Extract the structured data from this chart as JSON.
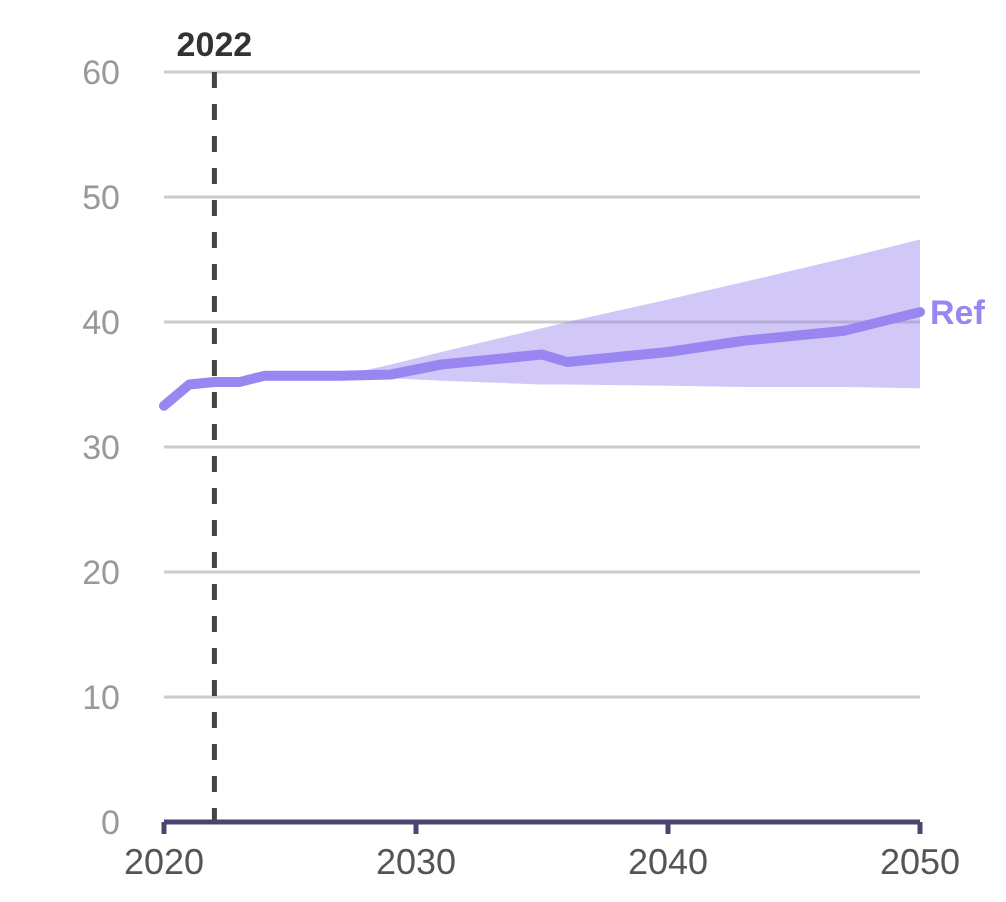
{
  "chart_data": {
    "type": "line",
    "x": [
      2020,
      2021,
      2022,
      2023,
      2024,
      2027,
      2029,
      2031,
      2035,
      2036,
      2040,
      2043,
      2047,
      2050
    ],
    "series": [
      {
        "name": "Ref",
        "color": "#9a86f0",
        "values": [
          33.3,
          35,
          35.2,
          35.2,
          35.7,
          35.7,
          35.8,
          36.6,
          37.4,
          36.8,
          37.6,
          38.5,
          39.3,
          40.8
        ],
        "lower": [
          null,
          null,
          null,
          null,
          null,
          35.7,
          35.5,
          35.3,
          35,
          35,
          34.9,
          34.8,
          34.8,
          34.7
        ],
        "upper": [
          null,
          null,
          null,
          null,
          null,
          35.7,
          36.6,
          37.6,
          39.5,
          40,
          41.8,
          43.2,
          45.1,
          46.6
        ]
      }
    ],
    "xlim": [
      2020,
      2050
    ],
    "xticks": [
      2020,
      2030,
      2040,
      2050
    ],
    "ylim": [
      0,
      60
    ],
    "yticks": [
      0,
      10,
      20,
      30,
      40,
      50,
      60
    ],
    "grid": "y",
    "legend": false,
    "ref_lines": [
      {
        "axis": "x",
        "value": 2022,
        "label": "2022",
        "line_style": "dashed"
      }
    ]
  }
}
